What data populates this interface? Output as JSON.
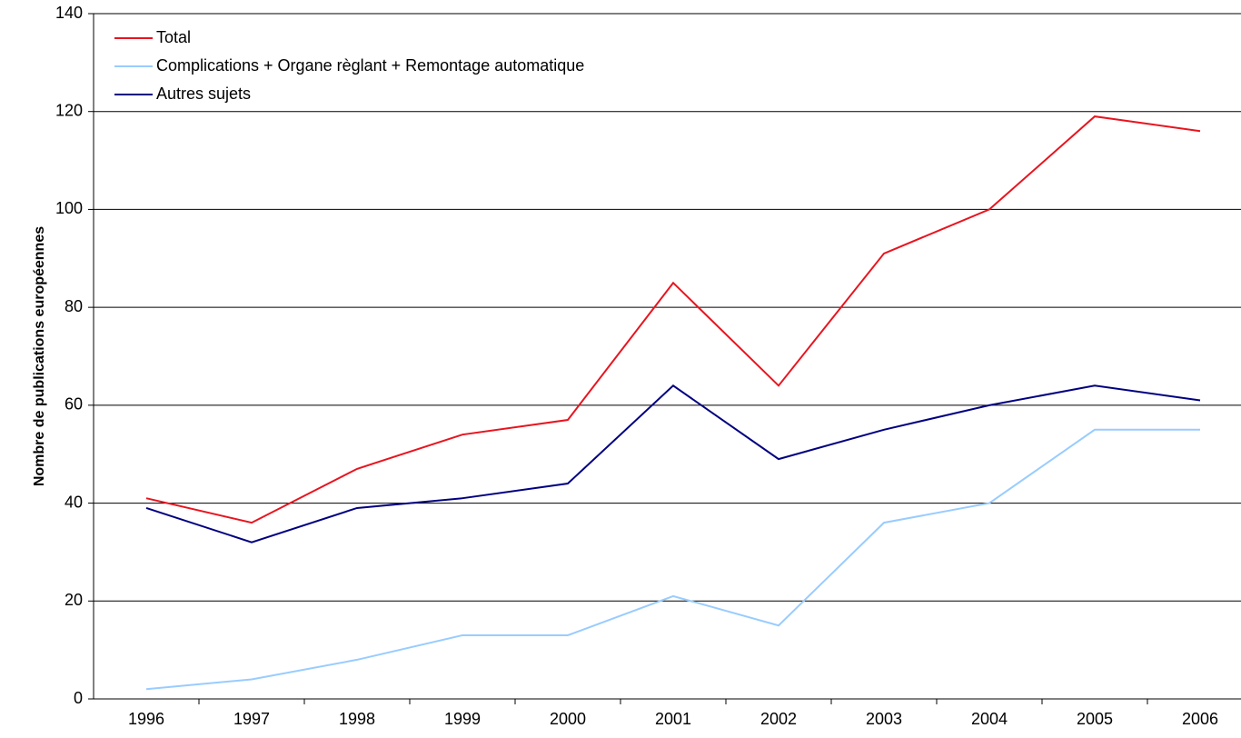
{
  "chart_data": {
    "type": "line",
    "y_label": "Nombre de publications européennes",
    "categories": [
      "1996",
      "1997",
      "1998",
      "1999",
      "2000",
      "2001",
      "2002",
      "2003",
      "2004",
      "2005",
      "2006"
    ],
    "series": [
      {
        "name": "Total",
        "color": "#e8141e",
        "values": [
          41,
          36,
          47,
          54,
          57,
          85,
          64,
          91,
          100,
          119,
          116
        ]
      },
      {
        "name": "Complications + Organe règlant + Remontage automatique",
        "color": "#99ccff",
        "values": [
          2,
          4,
          8,
          13,
          13,
          21,
          15,
          36,
          40,
          55,
          55
        ]
      },
      {
        "name": "Autres sujets",
        "color": "#000080",
        "values": [
          39,
          32,
          39,
          41,
          44,
          64,
          49,
          55,
          60,
          64,
          61
        ]
      }
    ],
    "ylim": [
      0,
      140
    ],
    "yticks": [
      0,
      20,
      40,
      60,
      80,
      100,
      120,
      140
    ],
    "grid": true,
    "legend": "top-left"
  }
}
